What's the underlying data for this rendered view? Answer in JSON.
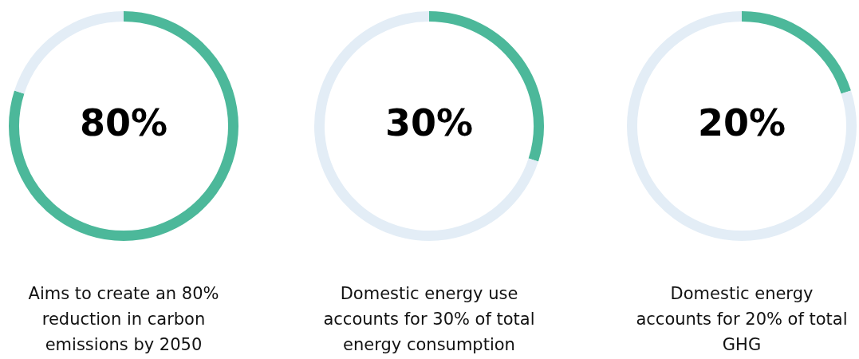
{
  "chart_data": [
    {
      "type": "donut",
      "categories": [
        null,
        null
      ],
      "values": [
        80,
        20
      ],
      "colors": [
        "#4cb89a",
        "#e3edf6"
      ],
      "value_labels": [
        "80%",
        null
      ],
      "legend": false,
      "annotations": [
        "Aims to create an 80% reduction in carbon emissions by 2050"
      ]
    },
    {
      "type": "donut",
      "categories": [
        null,
        null
      ],
      "values": [
        30,
        70
      ],
      "colors": [
        "#4cb89a",
        "#e3edf6"
      ],
      "value_labels": [
        "30%",
        null
      ],
      "legend": false,
      "annotations": [
        "Domestic energy use accounts for 30% of total energy consumption"
      ]
    },
    {
      "type": "donut",
      "categories": [
        null,
        null
      ],
      "values": [
        20,
        80
      ],
      "colors": [
        "#4cb89a",
        "#e3edf6"
      ],
      "value_labels": [
        "20%",
        null
      ],
      "legend": false,
      "annotations": [
        "Domestic energy accounts for 20% of total GHG"
      ]
    }
  ]
}
